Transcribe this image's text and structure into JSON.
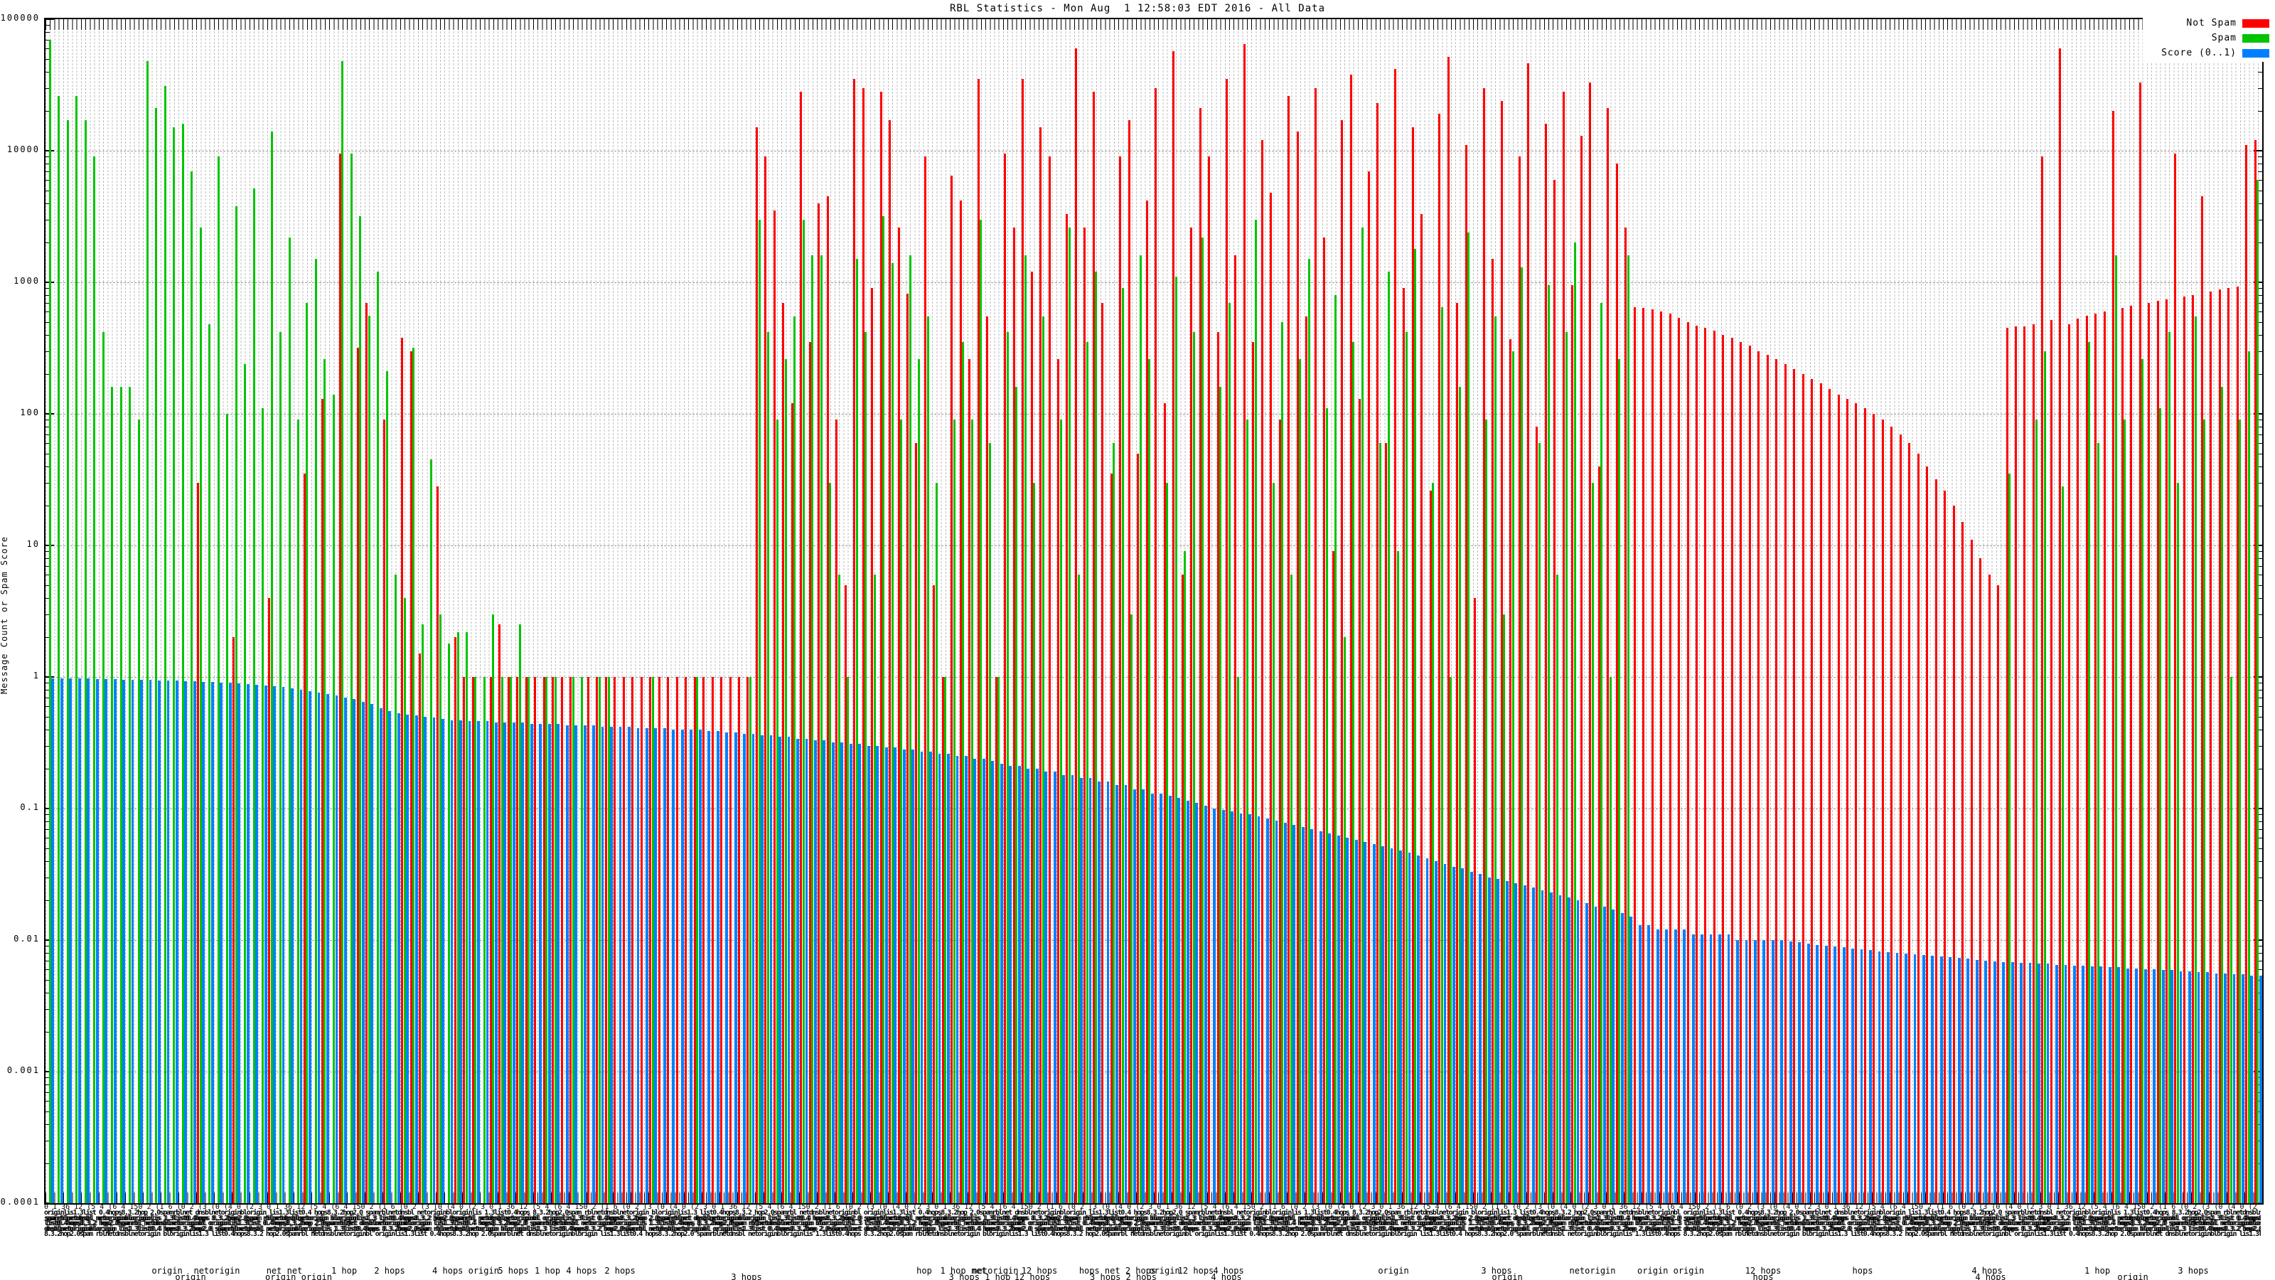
{
  "title": "RBL Statistics - Mon Aug  1 12:58:03 EDT 2016 - All Data",
  "y_axis": {
    "label": "Message Count or Spam Score",
    "ticks": [
      "100000",
      "10000",
      "1000",
      "100",
      "10",
      "1",
      "0.1",
      "0.01",
      "0.001",
      "0.0001"
    ],
    "min": 0.0001,
    "max": 100000,
    "scale": "log"
  },
  "legend": {
    "position": "top-right",
    "items": [
      {
        "label": "Not Spam",
        "color": "#ff0000"
      },
      {
        "label": "Spam",
        "color": "#00c400"
      },
      {
        "label": "Score (0..1)",
        "color": "#0080ff"
      }
    ]
  },
  "x_axis": {
    "tick_label_fragments": [
      "origin",
      "netorigin",
      "net",
      "spam",
      "hop",
      "hops",
      "list",
      "lis",
      "bl",
      "dnsbl",
      "rbl",
      "2.0",
      "8.3.2",
      "0.4",
      "1.3"
    ],
    "digit_fragments": [
      "2",
      "0",
      "4",
      "(3",
      "1",
      "150",
      "(0",
      "36",
      "2",
      "(4",
      "12",
      "(1",
      "0",
      "(5",
      "6",
      "(2",
      "4",
      "(0",
      "3",
      "(6"
    ],
    "sparse_labels": [
      {
        "t": "origin",
        "x": 235,
        "r": 0
      },
      {
        "t": "netorigin",
        "x": 305,
        "r": 0
      },
      {
        "t": "net net",
        "x": 400,
        "r": 0
      },
      {
        "t": "1 hop",
        "x": 484,
        "r": 0
      },
      {
        "t": "2 hops",
        "x": 548,
        "r": 0
      },
      {
        "t": "4 hops origin",
        "x": 655,
        "r": 0
      },
      {
        "t": "5 hops",
        "x": 722,
        "r": 0
      },
      {
        "t": "1 hop",
        "x": 770,
        "r": 0
      },
      {
        "t": "4 hops",
        "x": 818,
        "r": 0
      },
      {
        "t": "2 hops",
        "x": 872,
        "r": 0
      },
      {
        "t": "hop",
        "x": 1300,
        "r": 0
      },
      {
        "t": "1 hop net",
        "x": 1355,
        "r": 0
      },
      {
        "t": "netorigin",
        "x": 1400,
        "r": 0
      },
      {
        "t": "12 hops",
        "x": 1462,
        "r": 0
      },
      {
        "t": "hops net 2 hops",
        "x": 1572,
        "r": 0
      },
      {
        "t": "origin",
        "x": 1638,
        "r": 0
      },
      {
        "t": "12 hops",
        "x": 1682,
        "r": 0
      },
      {
        "t": "4 hops",
        "x": 1728,
        "r": 0
      },
      {
        "t": "origin",
        "x": 1960,
        "r": 0
      },
      {
        "t": "3 hops",
        "x": 2105,
        "r": 0
      },
      {
        "t": "netorigin",
        "x": 2240,
        "r": 0
      },
      {
        "t": "origin origin",
        "x": 2350,
        "r": 0
      },
      {
        "t": "12 hops",
        "x": 2480,
        "r": 0
      },
      {
        "t": "hops",
        "x": 2620,
        "r": 0
      },
      {
        "t": "4 hops",
        "x": 2795,
        "r": 0
      },
      {
        "t": "1 hop",
        "x": 2950,
        "r": 0
      },
      {
        "t": "3 hops",
        "x": 3085,
        "r": 0
      },
      {
        "t": "3",
        "x": 3185,
        "r": 0
      },
      {
        "t": "origin",
        "x": 268,
        "r": 1
      },
      {
        "t": "origin origin",
        "x": 420,
        "r": 1
      },
      {
        "t": "3 hops",
        "x": 1050,
        "r": 1
      },
      {
        "t": "3 hops 1 hop",
        "x": 1378,
        "r": 1
      },
      {
        "t": "12 hops",
        "x": 1452,
        "r": 1
      },
      {
        "t": "3 hops 2 hops",
        "x": 1580,
        "r": 1
      },
      {
        "t": "4 hops",
        "x": 1725,
        "r": 1
      },
      {
        "t": "origin",
        "x": 2120,
        "r": 1
      },
      {
        "t": "hops",
        "x": 2480,
        "r": 1
      },
      {
        "t": "4 hops",
        "x": 2800,
        "r": 1
      },
      {
        "t": "origin",
        "x": 3000,
        "r": 1
      }
    ]
  },
  "chart_data": {
    "type": "bar",
    "log_scale": true,
    "ylim": [
      0.0001,
      100000
    ],
    "n_categories": 250,
    "grid": "on",
    "legend_position": "top-right",
    "series": [
      {
        "name": "Not Spam",
        "color": "#ff0000",
        "values": [
          0,
          0,
          0,
          0,
          0,
          0,
          0,
          0,
          0,
          0,
          0,
          0,
          0,
          0,
          0,
          0,
          0,
          30,
          0,
          0,
          0,
          2,
          0,
          0,
          0,
          4,
          0,
          0,
          0,
          35,
          0,
          130,
          0,
          9500,
          0,
          320,
          700,
          0,
          90,
          0,
          380,
          300,
          1.5,
          0,
          28,
          0,
          2,
          1,
          1,
          0,
          1,
          2.5,
          1,
          1,
          1,
          1,
          1,
          1,
          1,
          1,
          0,
          1,
          1,
          1,
          1,
          1,
          1,
          1,
          1,
          1,
          1,
          1,
          1,
          1,
          1,
          1,
          1,
          1,
          1,
          1,
          15000,
          9000,
          3500,
          700,
          120,
          28000,
          350,
          4000,
          4500,
          90,
          5,
          35000,
          30000,
          900,
          28000,
          17000,
          2600,
          820,
          60,
          9000,
          5,
          1,
          6500,
          4200,
          260,
          35000,
          550,
          1,
          9500,
          2600,
          35000,
          1200,
          15000,
          9000,
          260,
          3300,
          60000,
          2600,
          28000,
          700,
          35,
          9000,
          17000,
          50,
          4200,
          30000,
          120,
          57000,
          6,
          2600,
          21000,
          9000,
          420,
          35000,
          1600,
          65000,
          350,
          12000,
          4800,
          90,
          26000,
          14000,
          550,
          30000,
          2200,
          9,
          17000,
          38000,
          130,
          7000,
          23000,
          60,
          42000,
          900,
          15000,
          3300,
          26,
          19000,
          52000,
          700,
          11000,
          4,
          30000,
          1500,
          24000,
          370,
          9000,
          46000,
          80,
          16000,
          6000,
          28000,
          950,
          13000,
          33000,
          40,
          21000,
          8000,
          2600,
          650,
          640,
          620,
          600,
          580,
          540,
          500,
          470,
          450,
          430,
          400,
          380,
          350,
          330,
          300,
          280,
          260,
          240,
          220,
          200,
          185,
          170,
          155,
          140,
          130,
          120,
          110,
          100,
          90,
          80,
          70,
          60,
          50,
          40,
          32,
          26,
          20,
          15,
          11,
          8,
          6,
          5,
          450,
          460,
          460,
          480,
          9000,
          520,
          60000,
          480,
          530,
          560,
          580,
          600,
          20000,
          640,
          660,
          33000,
          700,
          720,
          740,
          9500,
          780,
          800,
          4500,
          850,
          880,
          900,
          930,
          11000,
          12000
        ]
      },
      {
        "name": "Spam",
        "color": "#00c400",
        "values": [
          70000,
          26000,
          17000,
          26000,
          17000,
          9000,
          420,
          160,
          160,
          160,
          90,
          48000,
          21000,
          31000,
          15000,
          16000,
          7000,
          2600,
          480,
          9000,
          100,
          3800,
          240,
          5200,
          110,
          14000,
          420,
          2200,
          90,
          700,
          1500,
          260,
          140,
          48000,
          9500,
          3200,
          560,
          1200,
          210,
          6,
          4,
          320,
          2.5,
          45,
          3,
          1.8,
          2.2,
          2.2,
          1,
          1,
          3,
          1,
          1,
          2.5,
          1,
          0,
          1,
          1,
          0,
          1,
          1,
          0,
          1,
          1,
          0,
          0,
          0,
          0,
          1,
          0,
          0,
          0,
          0,
          1,
          0,
          0,
          0,
          0,
          0,
          1,
          3000,
          420,
          90,
          260,
          550,
          3000,
          1600,
          1600,
          30,
          6,
          1,
          1500,
          420,
          6,
          3200,
          1400,
          90,
          1600,
          260,
          550,
          30,
          1,
          90,
          350,
          90,
          3000,
          60,
          1,
          420,
          160,
          1600,
          30,
          550,
          0,
          90,
          2600,
          6,
          350,
          1200,
          0,
          60,
          900,
          3,
          1600,
          260,
          0,
          30,
          1100,
          9,
          420,
          2200,
          0,
          160,
          700,
          1,
          90,
          3000,
          0,
          30,
          500,
          6,
          260,
          1500,
          0,
          110,
          800,
          2,
          350,
          2600,
          0,
          60,
          1200,
          9,
          420,
          1800,
          0,
          30,
          650,
          1,
          160,
          2400,
          0,
          90,
          550,
          3,
          300,
          1300,
          0,
          60,
          950,
          6,
          420,
          2000,
          0,
          30,
          700,
          1,
          260,
          1600,
          0,
          0,
          0,
          0,
          0,
          0,
          0,
          0,
          0,
          0,
          0,
          0,
          0,
          0,
          0,
          0,
          0,
          0,
          0,
          0,
          0,
          0,
          0,
          0,
          0,
          0,
          0,
          0,
          0,
          0,
          0,
          0,
          0,
          0,
          0,
          0,
          0,
          0,
          0,
          0,
          0,
          0,
          35,
          0,
          0,
          90,
          300,
          0,
          28,
          0,
          0,
          350,
          60,
          0,
          1600,
          90,
          0,
          260,
          0,
          110,
          420,
          30,
          0,
          550,
          90,
          0,
          160,
          1,
          90,
          300,
          6000
        ]
      },
      {
        "name": "Score (0..1)",
        "color": "#0080ff",
        "values": [
          0.98,
          0.98,
          0.97,
          0.97,
          0.97,
          0.96,
          0.96,
          0.96,
          0.95,
          0.95,
          0.95,
          0.95,
          0.94,
          0.94,
          0.94,
          0.93,
          0.93,
          0.92,
          0.92,
          0.91,
          0.9,
          0.89,
          0.88,
          0.87,
          0.86,
          0.85,
          0.84,
          0.82,
          0.8,
          0.78,
          0.76,
          0.74,
          0.72,
          0.7,
          0.68,
          0.65,
          0.62,
          0.58,
          0.55,
          0.53,
          0.52,
          0.51,
          0.5,
          0.49,
          0.48,
          0.47,
          0.47,
          0.46,
          0.46,
          0.46,
          0.45,
          0.45,
          0.45,
          0.45,
          0.44,
          0.44,
          0.44,
          0.44,
          0.43,
          0.43,
          0.43,
          0.43,
          0.42,
          0.42,
          0.42,
          0.42,
          0.41,
          0.41,
          0.41,
          0.41,
          0.4,
          0.4,
          0.4,
          0.4,
          0.39,
          0.39,
          0.38,
          0.38,
          0.37,
          0.37,
          0.36,
          0.36,
          0.35,
          0.35,
          0.34,
          0.34,
          0.33,
          0.33,
          0.32,
          0.32,
          0.31,
          0.31,
          0.3,
          0.3,
          0.29,
          0.29,
          0.28,
          0.28,
          0.27,
          0.27,
          0.26,
          0.26,
          0.25,
          0.25,
          0.24,
          0.24,
          0.23,
          0.22,
          0.21,
          0.21,
          0.2,
          0.2,
          0.19,
          0.19,
          0.18,
          0.18,
          0.17,
          0.17,
          0.16,
          0.16,
          0.15,
          0.15,
          0.14,
          0.14,
          0.13,
          0.13,
          0.125,
          0.12,
          0.115,
          0.11,
          0.105,
          0.1,
          0.098,
          0.095,
          0.092,
          0.09,
          0.087,
          0.084,
          0.081,
          0.078,
          0.075,
          0.072,
          0.07,
          0.067,
          0.065,
          0.062,
          0.06,
          0.058,
          0.056,
          0.054,
          0.052,
          0.05,
          0.048,
          0.046,
          0.044,
          0.042,
          0.04,
          0.038,
          0.036,
          0.035,
          0.033,
          0.032,
          0.03,
          0.029,
          0.028,
          0.027,
          0.026,
          0.025,
          0.024,
          0.023,
          0.022,
          0.021,
          0.02,
          0.019,
          0.018,
          0.018,
          0.017,
          0.016,
          0.015,
          0.013,
          0.013,
          0.012,
          0.012,
          0.012,
          0.012,
          0.011,
          0.011,
          0.011,
          0.011,
          0.011,
          0.01,
          0.01,
          0.01,
          0.01,
          0.01,
          0.01,
          0.0098,
          0.0096,
          0.0094,
          0.0092,
          0.009,
          0.0089,
          0.0088,
          0.0086,
          0.0085,
          0.0084,
          0.0082,
          0.0081,
          0.008,
          0.0079,
          0.0078,
          0.0077,
          0.0076,
          0.0075,
          0.0074,
          0.0073,
          0.0072,
          0.0071,
          0.007,
          0.0069,
          0.0068,
          0.0068,
          0.0067,
          0.0067,
          0.0066,
          0.0066,
          0.0065,
          0.0065,
          0.0064,
          0.0064,
          0.0063,
          0.0063,
          0.0062,
          0.0062,
          0.0061,
          0.0061,
          0.006,
          0.006,
          0.0059,
          0.0059,
          0.0058,
          0.0058,
          0.0057,
          0.0057,
          0.0056,
          0.0056,
          0.0055,
          0.0055,
          0.0054,
          0.0054
        ]
      }
    ]
  }
}
